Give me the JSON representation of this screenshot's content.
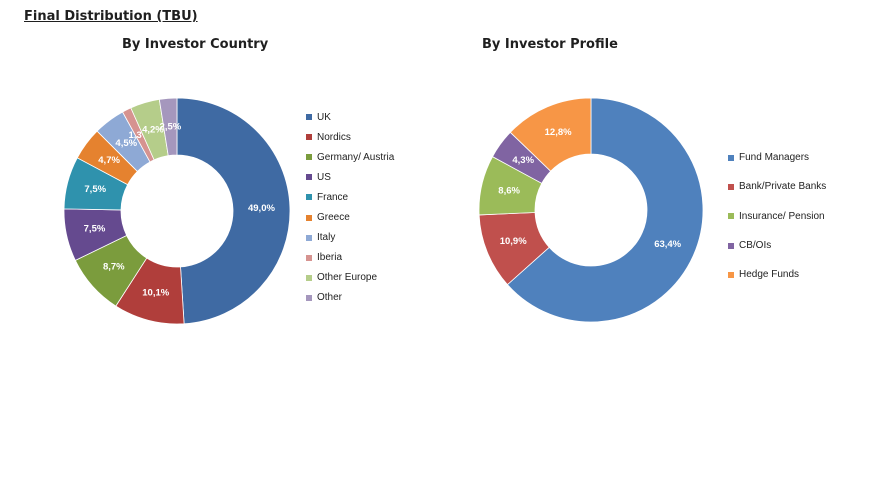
{
  "page": {
    "title": "Final Distribution (TBU)"
  },
  "chart_data": [
    {
      "type": "pie",
      "title": "By Investor Country",
      "categories": [
        "UK",
        "Nordics",
        "Germany/ Austria",
        "US",
        "France",
        "Greece",
        "Italy",
        "Iberia",
        "Other Europe",
        "Other"
      ],
      "values": [
        49.0,
        10.1,
        8.7,
        7.5,
        7.5,
        4.7,
        4.5,
        1.3,
        4.2,
        2.5
      ],
      "labels": [
        "49,0%",
        "10,1%",
        "8,7%",
        "7,5%",
        "7,5%",
        "4,7%",
        "4,5%",
        "1,3%",
        "4,2%",
        "2,5%"
      ],
      "colors": [
        "#3f6aa3",
        "#b03e3b",
        "#7b9c3d",
        "#654a8f",
        "#2f92ad",
        "#e5822f",
        "#8ea9d5",
        "#d69390",
        "#b5cd8a",
        "#a597bd"
      ],
      "legend_position": "right"
    },
    {
      "type": "pie",
      "title": "By Investor Profile",
      "categories": [
        "Fund Managers",
        "Bank/Private Banks",
        "Insurance/ Pension",
        "CB/OIs",
        "Hedge Funds"
      ],
      "values": [
        63.4,
        10.9,
        8.6,
        4.3,
        12.8
      ],
      "labels": [
        "63,4%",
        "10,9%",
        "8,6%",
        "4,3%",
        "12,8%"
      ],
      "colors": [
        "#4f81bd",
        "#c0504d",
        "#9bbb59",
        "#8064a2",
        "#f79646"
      ],
      "legend_position": "right"
    }
  ]
}
